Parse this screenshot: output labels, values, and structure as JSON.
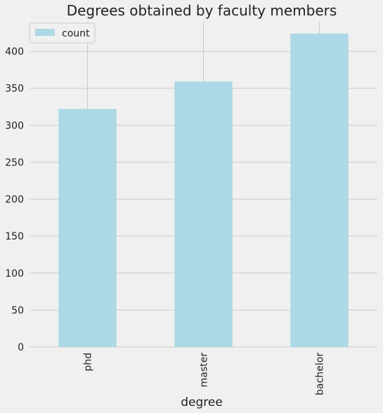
{
  "chart_data": {
    "type": "bar",
    "title": "Degrees obtained by faculty members",
    "xlabel": "degree",
    "ylabel": "",
    "categories": [
      "phd",
      "master",
      "bachelor"
    ],
    "series": [
      {
        "name": "count",
        "values": [
          322,
          359,
          424
        ]
      }
    ],
    "ylim": [
      0,
      440
    ],
    "yticks": [
      0,
      50,
      100,
      150,
      200,
      250,
      300,
      350,
      400
    ],
    "grid": true,
    "legend_position": "top-left",
    "bar_color": "#add8e6",
    "background_color": "#f0f0f0",
    "grid_color": "#cbcbcb"
  }
}
